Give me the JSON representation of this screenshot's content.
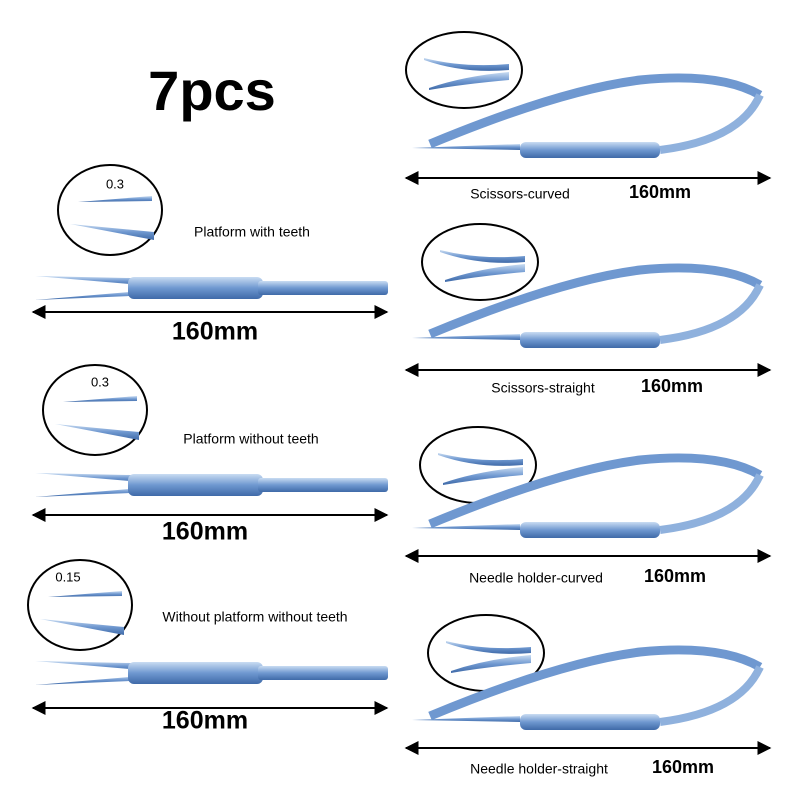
{
  "title": "7pcs",
  "forceps": [
    {
      "tip": "0.3",
      "name": "Platform with teeth",
      "length": "160mm"
    },
    {
      "tip": "0.3",
      "name": "Platform without teeth",
      "length": "160mm"
    },
    {
      "tip": "0.15",
      "name": "Without platform without teeth",
      "length": "160mm"
    }
  ],
  "scissors": [
    {
      "name": "Scissors-curved",
      "length": "160mm"
    },
    {
      "name": "Scissors-straight",
      "length": "160mm"
    },
    {
      "name": "Needle holder-curved",
      "length": "160mm"
    },
    {
      "name": "Needle holder-straight",
      "length": "160mm"
    }
  ]
}
